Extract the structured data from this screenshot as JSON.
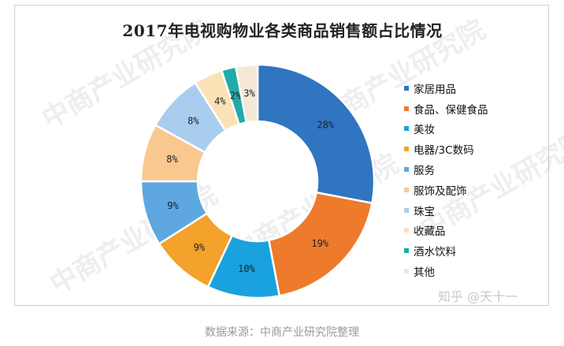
{
  "watermark": "中商产业研究院",
  "signature": "知乎 @天十一",
  "source": "数据来源：中商产业研究院整理",
  "chart_data": {
    "type": "pie",
    "title": "2017年电视购物业各类商品销售额占比情况",
    "legend_position": "right",
    "donut": true,
    "slices": [
      {
        "label": "家居用品",
        "value": 28,
        "value_label": "28%",
        "color": "#2F75C0"
      },
      {
        "label": "食品、保健食品",
        "value": 19,
        "value_label": "19%",
        "color": "#EE7A2C"
      },
      {
        "label": "美妆",
        "value": 10,
        "value_label": "10%",
        "color": "#1AA2DE"
      },
      {
        "label": "电器/3C数码",
        "value": 9,
        "value_label": "9%",
        "color": "#F3A22B"
      },
      {
        "label": "服务",
        "value": 9,
        "value_label": "9%",
        "color": "#5DA8E0"
      },
      {
        "label": "服饰及配饰",
        "value": 8,
        "value_label": "8%",
        "color": "#F9C891"
      },
      {
        "label": "珠宝",
        "value": 8,
        "value_label": "8%",
        "color": "#A9CDEF"
      },
      {
        "label": "收藏品",
        "value": 4,
        "value_label": "4%",
        "color": "#FBE2B6"
      },
      {
        "label": "酒水饮料",
        "value": 2,
        "value_label": "2%",
        "color": "#21ABA9"
      },
      {
        "label": "其他",
        "value": 3,
        "value_label": "3%",
        "color": "#F5E8D6"
      }
    ]
  }
}
